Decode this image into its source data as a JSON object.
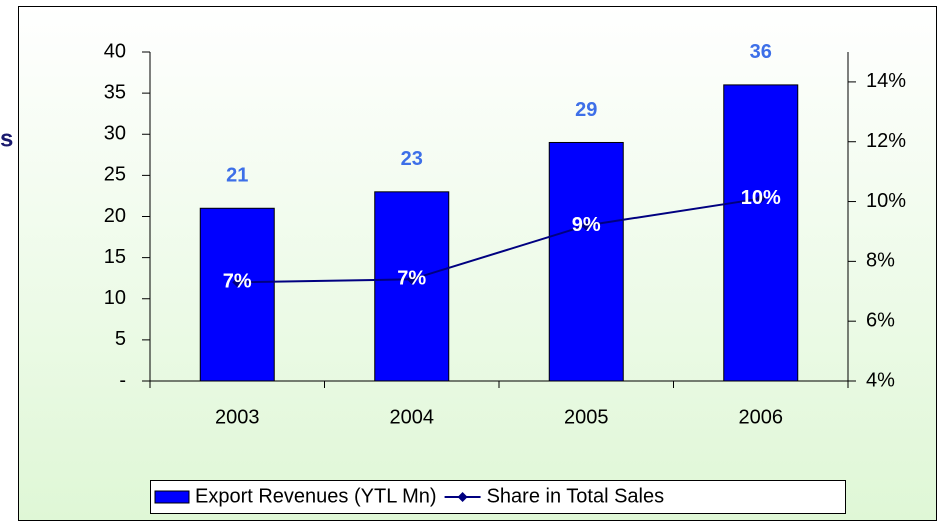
{
  "chart_data": {
    "type": "combo",
    "annotations": [
      {
        "text": "s"
      }
    ],
    "categories": [
      "2003",
      "2004",
      "2005",
      "2006"
    ],
    "series": [
      {
        "name": "Export Revenues (YTL Mn)",
        "type": "bar",
        "color": "#0000ff",
        "label_color": "#3d6fe8",
        "values": [
          21,
          23,
          29,
          36
        ]
      },
      {
        "name": "Share in Total Sales",
        "type": "line",
        "axis": "y2",
        "color": "#000080",
        "label_color": "#ffffff",
        "values": [
          7.3,
          7.4,
          9.2,
          10.1
        ],
        "value_labels": [
          "7%",
          "7%",
          "9%",
          "10%"
        ]
      }
    ],
    "ylim": [
      0,
      40
    ],
    "yticks": [
      {
        "value": 0,
        "label": "-"
      },
      5,
      10,
      15,
      20,
      25,
      30,
      35,
      40
    ],
    "y2lim": [
      4,
      15
    ],
    "y2ticks": [
      {
        "value": 4,
        "label": "4%"
      },
      {
        "value": 6,
        "label": "6%"
      },
      {
        "value": 8,
        "label": "8%"
      },
      {
        "value": 10,
        "label": "10%"
      },
      {
        "value": 12,
        "label": "12%"
      },
      {
        "value": 14,
        "label": "14%"
      }
    ],
    "grid": false,
    "legend": "bottom"
  }
}
